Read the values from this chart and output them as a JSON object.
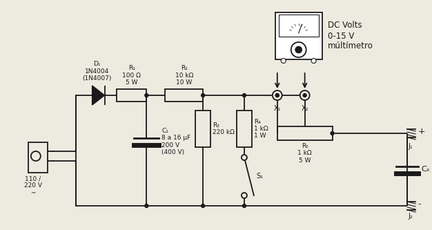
{
  "bg_color": "#edeae0",
  "line_color": "#1a1a1a",
  "components": {
    "plug_label": "110 /\n220 V\n~",
    "D1_label": "D₁\n1N4004\n(1N4007)",
    "R1_label": "R₁\n100 Ω\n5 W",
    "R2_label": "R₂\n10 kΩ\n10 W",
    "R3_label": "R₃\n220 kΩ",
    "R4_label": "R₄\n1 kΩ\n1 W",
    "R5_label": "R₅\n1 kΩ\n5 W",
    "C1_label": "C₁\n8 a 16 μF\n200 V\n(400 V)",
    "Cx_label": "Cₓ",
    "S1_label": "S₁",
    "X1_label": "X₁",
    "X2_label": "X₂",
    "J1_label": "J₁",
    "J2_label": "J₂",
    "meter_label": "DC Volts\n0-15 V\nmúltímetro"
  }
}
